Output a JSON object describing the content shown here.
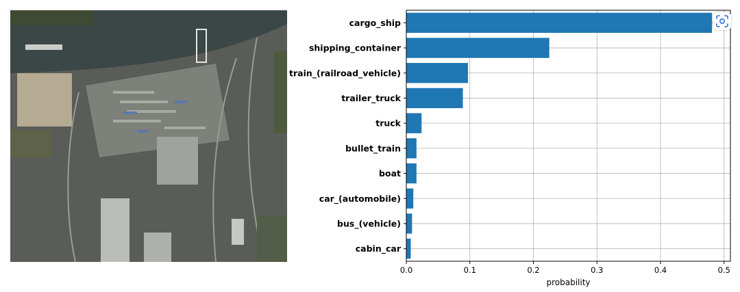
{
  "colors": {
    "bar": "#1f77b4",
    "grid": "#b0b0b0",
    "axis": "#000000",
    "water": "#3b4746",
    "dock": "#8a8c86",
    "land": "#4e5a3e",
    "lens_icon": "#3d7fd9"
  },
  "image": {
    "icon": "satellite-image-icon"
  },
  "lens_button": {
    "icon": "visual-search-icon"
  },
  "chart_data": {
    "type": "bar",
    "orientation": "horizontal",
    "categories": [
      "cargo_ship",
      "shipping_container",
      "train_(railroad_vehicle)",
      "trailer_truck",
      "truck",
      "bullet_train",
      "boat",
      "car_(automobile)",
      "bus_(vehicle)",
      "cabin_car"
    ],
    "values": [
      0.481,
      0.225,
      0.097,
      0.089,
      0.024,
      0.016,
      0.016,
      0.011,
      0.009,
      0.007
    ],
    "xlabel": "probability",
    "ylabel": "",
    "title": "",
    "xlim": [
      0.0,
      0.51
    ],
    "xticks": [
      0.0,
      0.1,
      0.2,
      0.3,
      0.4,
      0.5
    ],
    "xtick_labels": [
      "0.0",
      "0.1",
      "0.2",
      "0.3",
      "0.4",
      "0.5"
    ],
    "grid": true,
    "legend": "none"
  }
}
